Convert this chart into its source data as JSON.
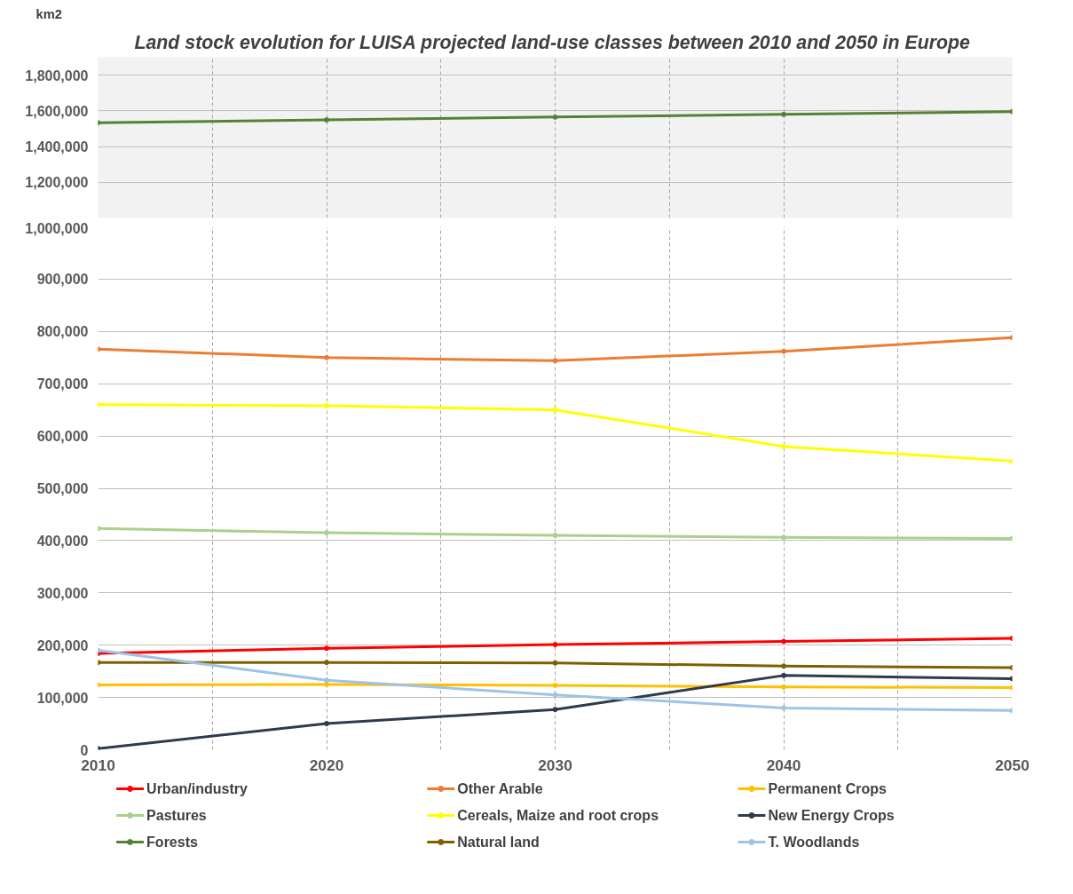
{
  "chart_data": [
    {
      "type": "line",
      "title": "Land stock evolution for LUISA projected land-use classes between 2010  and 2050 in Europe",
      "ylabel": "km2",
      "x": [
        2010,
        2020,
        2030,
        2040,
        2050
      ],
      "xlim": [
        2010,
        2050
      ],
      "xticks": [
        2010,
        {
          "value": 2015,
          "label": null
        },
        2020,
        {
          "value": 2025,
          "label": null
        },
        2030,
        {
          "value": 2035,
          "label": null
        },
        2040,
        {
          "value": 2045,
          "label": null
        },
        2050
      ],
      "ylim": [
        1000000,
        1900000
      ],
      "yticks": [
        {
          "value": 1200000,
          "label": "1,200,000"
        },
        {
          "value": 1400000,
          "label": "1,400,000"
        },
        {
          "value": 1600000,
          "label": "1,600,000"
        },
        {
          "value": 1800000,
          "label": "1,800,000"
        }
      ],
      "grid": true,
      "tick_labels": "y",
      "legend": "bottom",
      "marker": "circle",
      "series": [
        {
          "name": "Forests",
          "color": "#548235",
          "values": [
            1533000,
            1549000,
            1565000,
            1580000,
            1596000
          ]
        }
      ]
    },
    {
      "type": "line",
      "x": [
        2010,
        2020,
        2030,
        2040,
        2050
      ],
      "xlim": [
        2010,
        2050
      ],
      "xticks": [
        2010,
        {
          "value": 2015,
          "label": null
        },
        2020,
        {
          "value": 2025,
          "label": null
        },
        2030,
        {
          "value": 2035,
          "label": null
        },
        2040,
        {
          "value": 2045,
          "label": null
        },
        2050
      ],
      "ylim": [
        0,
        1000000
      ],
      "yticks": [
        0,
        {
          "value": 100000,
          "label": "100,000"
        },
        {
          "value": 200000,
          "label": "200,000"
        },
        {
          "value": 300000,
          "label": "300,000"
        },
        {
          "value": 400000,
          "label": "400,000"
        },
        {
          "value": 500000,
          "label": "500,000"
        },
        {
          "value": 600000,
          "label": "600,000"
        },
        {
          "value": 700000,
          "label": "700,000"
        },
        {
          "value": 800000,
          "label": "800,000"
        },
        {
          "value": 900000,
          "label": "900,000"
        },
        {
          "value": 1000000,
          "label": "1,000,000"
        }
      ],
      "grid": true,
      "legend": "bottom",
      "marker": "circle",
      "series": [
        {
          "name": "Urban/industry",
          "color": "#ff0000",
          "values": [
            184000,
            194000,
            201000,
            207000,
            213000
          ]
        },
        {
          "name": "Other Arable",
          "color": "#ed7d31",
          "values": [
            766000,
            750000,
            744000,
            762000,
            788000
          ]
        },
        {
          "name": "Permanent Crops",
          "color": "#ffc000",
          "values": [
            124000,
            125000,
            123000,
            120000,
            119000
          ]
        },
        {
          "name": "Pastures",
          "color": "#a9d18e",
          "values": [
            423000,
            415000,
            410000,
            406000,
            404000
          ]
        },
        {
          "name": "Cereals, Maize and root crops",
          "color": "#ffff00",
          "values": [
            660000,
            658000,
            650000,
            580000,
            552000
          ]
        },
        {
          "name": "New Energy Crops",
          "color": "#2f3b4c",
          "values": [
            2000,
            50000,
            77000,
            142000,
            136000
          ]
        },
        {
          "name": "Natural land",
          "color": "#7f6000",
          "values": [
            167000,
            167000,
            166000,
            160000,
            157000
          ]
        },
        {
          "name": "T. Woodlands",
          "color": "#9dc3e6",
          "values": [
            190000,
            133000,
            105000,
            80000,
            75000
          ]
        }
      ]
    }
  ]
}
